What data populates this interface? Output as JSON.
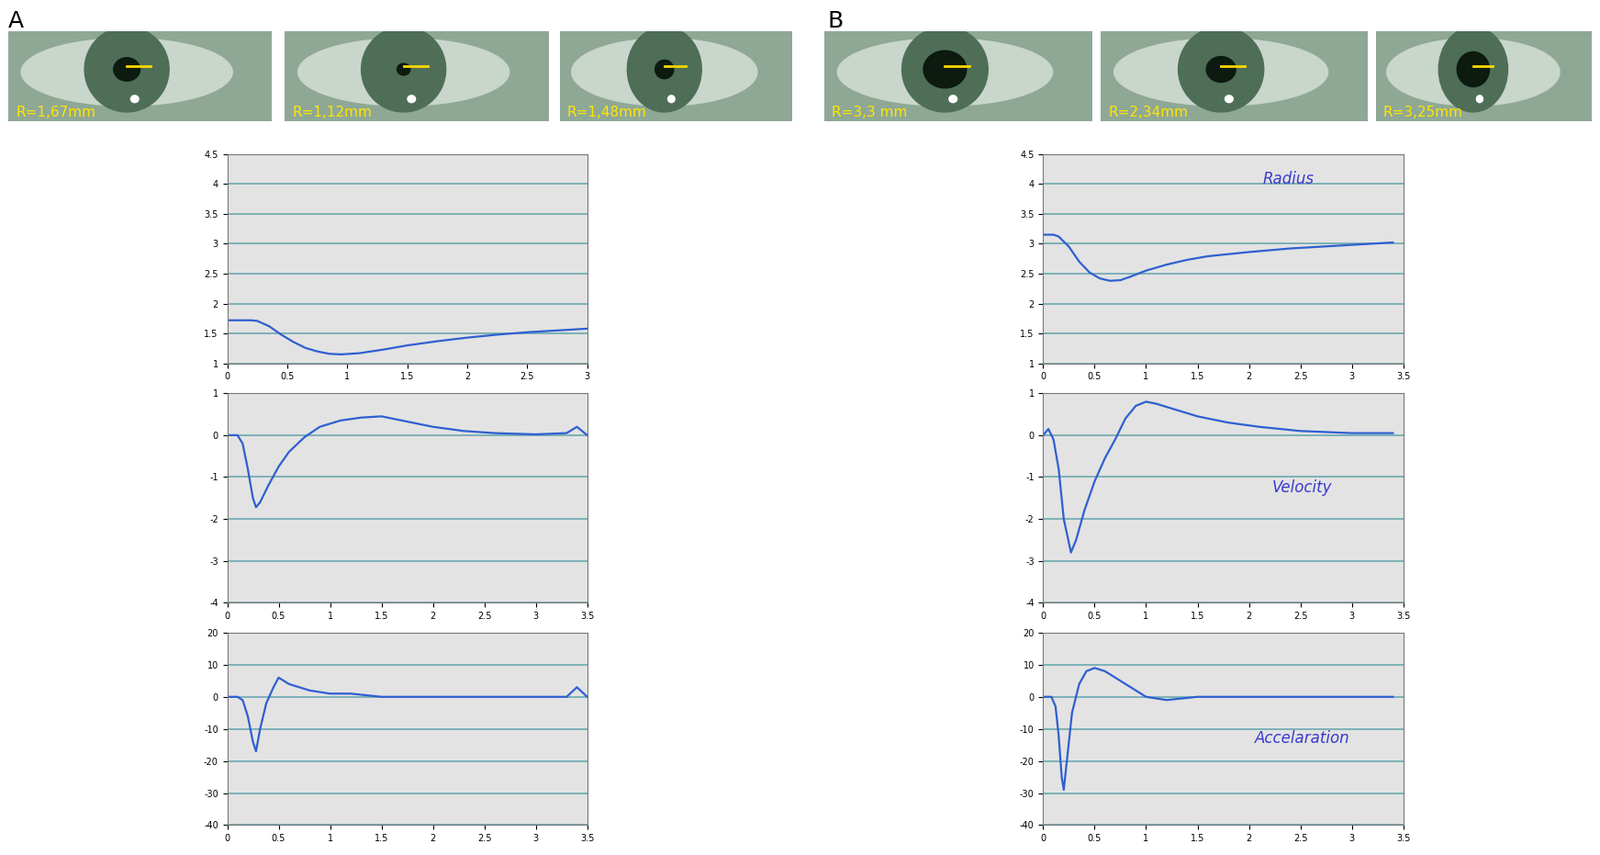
{
  "panel_labels": [
    "A",
    "B"
  ],
  "pupil_images": [
    [
      "R=1,67mm",
      "R=1,12mm",
      "R=1,48mm"
    ],
    [
      "R=3,3 mm",
      "R=2,34mm",
      "R=3,25mm"
    ]
  ],
  "chart_data": [
    {
      "type": "line",
      "color": "#2f5fd0",
      "grid": true,
      "x": [
        0,
        0.1,
        0.2,
        0.25,
        0.35,
        0.45,
        0.55,
        0.65,
        0.75,
        0.85,
        0.95,
        1.1,
        1.3,
        1.5,
        1.75,
        2,
        2.25,
        2.5,
        2.75,
        3
      ],
      "values": [
        1.72,
        1.72,
        1.72,
        1.71,
        1.62,
        1.48,
        1.36,
        1.26,
        1.2,
        1.16,
        1.15,
        1.17,
        1.23,
        1.3,
        1.37,
        1.43,
        1.48,
        1.52,
        1.55,
        1.58
      ],
      "xlim": [
        0,
        3
      ],
      "xticks": [
        0,
        0.5,
        1,
        1.5,
        2,
        2.5,
        3
      ],
      "ylim": [
        1,
        4.5
      ],
      "yticks": [
        1,
        1.5,
        2,
        2.5,
        3,
        3.5,
        4,
        4.5
      ]
    },
    {
      "type": "line",
      "color": "#2f5fd0",
      "grid": true,
      "x": [
        0,
        0.1,
        0.15,
        0.2,
        0.25,
        0.28,
        0.32,
        0.4,
        0.5,
        0.6,
        0.75,
        0.9,
        1.1,
        1.3,
        1.5,
        1.7,
        2,
        2.3,
        2.6,
        3,
        3.3,
        3.4,
        3.5
      ],
      "values": [
        0,
        0,
        -0.2,
        -0.8,
        -1.5,
        -1.72,
        -1.6,
        -1.2,
        -0.75,
        -0.4,
        -0.05,
        0.2,
        0.35,
        0.42,
        0.45,
        0.35,
        0.2,
        0.1,
        0.05,
        0.02,
        0.05,
        0.2,
        0
      ],
      "xlim": [
        0,
        3.5
      ],
      "xticks": [
        0,
        0.5,
        1,
        1.5,
        2,
        2.5,
        3,
        3.5
      ],
      "ylim": [
        -4,
        1
      ],
      "yticks": [
        -4,
        -3,
        -2,
        -1,
        0,
        1
      ]
    },
    {
      "type": "line",
      "color": "#2f5fd0",
      "grid": true,
      "x": [
        0,
        0.1,
        0.15,
        0.2,
        0.25,
        0.28,
        0.32,
        0.38,
        0.45,
        0.5,
        0.6,
        0.7,
        0.8,
        1,
        1.2,
        1.5,
        2,
        2.5,
        3,
        3.3,
        3.4,
        3.5
      ],
      "values": [
        0,
        0,
        -1,
        -6,
        -14,
        -17,
        -10,
        -2,
        3,
        6,
        4,
        3,
        2,
        1,
        1,
        0,
        0,
        0,
        0,
        0,
        3,
        0
      ],
      "xlim": [
        0,
        3.5
      ],
      "xticks": [
        0,
        0.5,
        1,
        1.5,
        2,
        2.5,
        3,
        3.5
      ],
      "ylim": [
        -40,
        20
      ],
      "yticks": [
        -40,
        -30,
        -20,
        -10,
        0,
        10,
        20
      ]
    },
    {
      "type": "line",
      "color": "#2f5fd0",
      "grid": true,
      "annotation": "Radius",
      "x": [
        0,
        0.1,
        0.15,
        0.25,
        0.35,
        0.45,
        0.55,
        0.65,
        0.75,
        0.85,
        1,
        1.2,
        1.4,
        1.6,
        2,
        2.4,
        2.8,
        3.2,
        3.4
      ],
      "values": [
        3.15,
        3.15,
        3.12,
        2.95,
        2.7,
        2.52,
        2.42,
        2.38,
        2.39,
        2.45,
        2.55,
        2.65,
        2.73,
        2.79,
        2.86,
        2.92,
        2.96,
        3.0,
        3.02
      ],
      "xlim": [
        0,
        3.5
      ],
      "xticks": [
        0,
        0.5,
        1,
        1.5,
        2,
        2.5,
        3,
        3.5
      ],
      "ylim": [
        1,
        4.5
      ],
      "yticks": [
        1,
        1.5,
        2,
        2.5,
        3,
        3.5,
        4,
        4.5
      ]
    },
    {
      "type": "line",
      "color": "#2f5fd0",
      "grid": true,
      "annotation": "Velocity",
      "x": [
        0,
        0.05,
        0.1,
        0.15,
        0.2,
        0.27,
        0.32,
        0.4,
        0.5,
        0.6,
        0.7,
        0.8,
        0.9,
        1,
        1.1,
        1.3,
        1.5,
        1.8,
        2.1,
        2.5,
        3,
        3.4
      ],
      "values": [
        0,
        0.15,
        -0.1,
        -0.8,
        -2.0,
        -2.8,
        -2.5,
        -1.8,
        -1.1,
        -0.55,
        -0.1,
        0.4,
        0.7,
        0.8,
        0.75,
        0.6,
        0.45,
        0.3,
        0.2,
        0.1,
        0.05,
        0.05
      ],
      "xlim": [
        0,
        3.5
      ],
      "xticks": [
        0,
        0.5,
        1,
        1.5,
        2,
        2.5,
        3,
        3.5
      ],
      "ylim": [
        -4,
        1
      ],
      "yticks": [
        -4,
        -3,
        -2,
        -1,
        0,
        1
      ]
    },
    {
      "type": "line",
      "color": "#2f5fd0",
      "grid": true,
      "annotation": "Accelaration",
      "x": [
        0,
        0.08,
        0.12,
        0.15,
        0.18,
        0.2,
        0.23,
        0.28,
        0.35,
        0.42,
        0.5,
        0.6,
        0.7,
        0.8,
        1,
        1.2,
        1.5,
        2,
        2.5,
        3,
        3.4
      ],
      "values": [
        0,
        0,
        -3,
        -12,
        -25,
        -29,
        -20,
        -5,
        4,
        8,
        9,
        8,
        6,
        4,
        0,
        -1,
        0,
        0,
        0,
        0,
        0
      ],
      "xlim": [
        0,
        3.5
      ],
      "xticks": [
        0,
        0.5,
        1,
        1.5,
        2,
        2.5,
        3,
        3.5
      ],
      "ylim": [
        -40,
        20
      ],
      "yticks": [
        -40,
        -30,
        -20,
        -10,
        0,
        10,
        20
      ]
    }
  ]
}
